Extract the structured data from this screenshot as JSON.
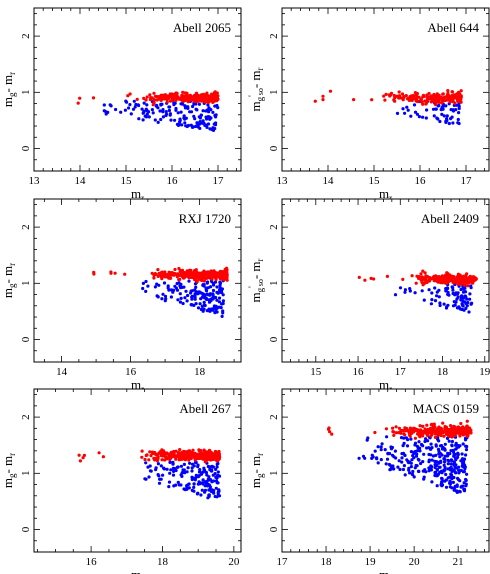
{
  "figure": {
    "panels": [
      {
        "title": "Abell 2065",
        "ylabel_main": "m",
        "ylabel_sub": "g",
        "ylabel_rest": "- m",
        "ylabel_sub2": "r",
        "xlabel_main": "m",
        "xlabel_sub": "r",
        "xticks": [
          "13",
          "14",
          "15",
          "16",
          "17"
        ],
        "yticks": [
          "0",
          "1",
          "2"
        ]
      },
      {
        "title": "Abell 644",
        "ylabel_main": "m",
        "ylabel_sub": "g",
        "ylabel_sup": "'",
        "ylabel_sub_extra": "so",
        "ylabel_rest": "- m",
        "ylabel_sub2": "r",
        "xlabel_main": "m",
        "xlabel_sub": "r",
        "xticks": [
          "13",
          "14",
          "15",
          "16",
          "17"
        ],
        "yticks": [
          "0",
          "1",
          "2"
        ]
      },
      {
        "title": "RXJ 1720",
        "ylabel_main": "m",
        "ylabel_sub": "g",
        "ylabel_rest": "- m",
        "ylabel_sub2": "r",
        "xlabel_main": "m",
        "xlabel_sub": "r",
        "xticks": [
          "14",
          "16",
          "18"
        ],
        "yticks": [
          "0",
          "1",
          "2"
        ]
      },
      {
        "title": "Abell 2409",
        "ylabel_main": "m",
        "ylabel_sub": "g",
        "ylabel_sup": "'",
        "ylabel_sub_extra": "so",
        "ylabel_rest": "- m",
        "ylabel_sub2": "r",
        "xlabel_main": "m",
        "xlabel_sub": "r",
        "xticks": [
          "15",
          "16",
          "17",
          "18",
          "19"
        ],
        "yticks": [
          "0",
          "1",
          "2"
        ]
      },
      {
        "title": "Abell 267",
        "ylabel_main": "m",
        "ylabel_sub": "g",
        "ylabel_rest": "- m",
        "ylabel_sub2": "r",
        "xlabel_main": "m",
        "xlabel_sub": "r",
        "xticks": [
          "16",
          "18",
          "20"
        ],
        "yticks": [
          "0",
          "1",
          "2"
        ]
      },
      {
        "title": "MACS 0159",
        "ylabel_main": "m",
        "ylabel_sub": "g",
        "ylabel_rest": "- m",
        "ylabel_sub2": "r",
        "xlabel_main": "m",
        "xlabel_sub": "r",
        "xticks": [
          "17",
          "18",
          "19",
          "20",
          "21"
        ],
        "yticks": [
          "0",
          "1",
          "2"
        ]
      }
    ]
  },
  "chart_data": [
    {
      "type": "scatter",
      "title": "Abell 2065",
      "xlabel": "m_r",
      "ylabel": "m_g - m_r",
      "xlim": [
        13,
        17.5
      ],
      "ylim": [
        -0.4,
        2.5
      ],
      "grid": false,
      "red_sequence": {
        "color": "#ff0000",
        "x_range": [
          13.9,
          17.0
        ],
        "y_center": 0.9,
        "y_spread": 0.08,
        "points": 260
      },
      "blue_cloud": {
        "color": "#0000ff",
        "x_range": [
          14.1,
          17.0
        ],
        "y_range": [
          0.3,
          0.85
        ],
        "points": 160
      }
    },
    {
      "type": "scatter",
      "title": "Abell 644",
      "xlabel": "m_r",
      "ylabel": "m_g' so - m_r",
      "xlim": [
        13,
        17.5
      ],
      "ylim": [
        -0.4,
        2.5
      ],
      "grid": false,
      "red_sequence": {
        "color": "#ff0000",
        "x_range": [
          13.7,
          16.9
        ],
        "y_center": 0.9,
        "y_spread": 0.08,
        "points": 190
      },
      "blue_cloud": {
        "color": "#0000ff",
        "x_range": [
          15.0,
          16.9
        ],
        "y_range": [
          0.4,
          0.85
        ],
        "points": 60
      }
    },
    {
      "type": "scatter",
      "title": "RXJ 1720",
      "xlabel": "m_r",
      "ylabel": "m_g - m_r",
      "xlim": [
        13.2,
        19.2
      ],
      "ylim": [
        -0.4,
        2.5
      ],
      "grid": false,
      "red_sequence": {
        "color": "#ff0000",
        "x_range": [
          14.8,
          18.8
        ],
        "y_center": 1.15,
        "y_spread": 0.08,
        "points": 300
      },
      "blue_cloud": {
        "color": "#0000ff",
        "x_range": [
          16.2,
          18.7
        ],
        "y_range": [
          0.4,
          1.05
        ],
        "points": 170
      }
    },
    {
      "type": "scatter",
      "title": "Abell 2409",
      "xlabel": "m_r",
      "ylabel": "m_g' so - m_r",
      "xlim": [
        14.2,
        19.1
      ],
      "ylim": [
        -0.4,
        2.5
      ],
      "grid": false,
      "red_sequence": {
        "color": "#ff0000",
        "x_range": [
          15.9,
          18.8
        ],
        "y_center": 1.07,
        "y_spread": 0.08,
        "points": 240
      },
      "blue_cloud": {
        "color": "#0000ff",
        "x_range": [
          16.8,
          18.7
        ],
        "y_range": [
          0.45,
          0.98
        ],
        "points": 90
      }
    },
    {
      "type": "scatter",
      "title": "Abell 267",
      "xlabel": "m_r",
      "ylabel": "m_g - m_r",
      "xlim": [
        14.4,
        20.2
      ],
      "ylim": [
        -0.4,
        2.5
      ],
      "grid": false,
      "red_sequence": {
        "color": "#ff0000",
        "x_range": [
          15.6,
          19.6
        ],
        "y_center": 1.32,
        "y_spread": 0.08,
        "points": 300
      },
      "blue_cloud": {
        "color": "#0000ff",
        "x_range": [
          17.1,
          19.6
        ],
        "y_range": [
          0.5,
          1.2
        ],
        "points": 170
      }
    },
    {
      "type": "scatter",
      "title": "MACS 0159",
      "xlabel": "m_r",
      "ylabel": "m_g - m_r",
      "xlim": [
        17.0,
        21.7
      ],
      "ylim": [
        -0.4,
        2.5
      ],
      "grid": false,
      "red_sequence": {
        "color": "#ff0000",
        "x_range": [
          17.8,
          21.3
        ],
        "y_center": 1.75,
        "y_spread": 0.08,
        "points": 280
      },
      "blue_cloud": {
        "color": "#0000ff",
        "x_range": [
          18.6,
          21.2
        ],
        "y_range": [
          0.6,
          1.65
        ],
        "points": 320
      }
    }
  ]
}
